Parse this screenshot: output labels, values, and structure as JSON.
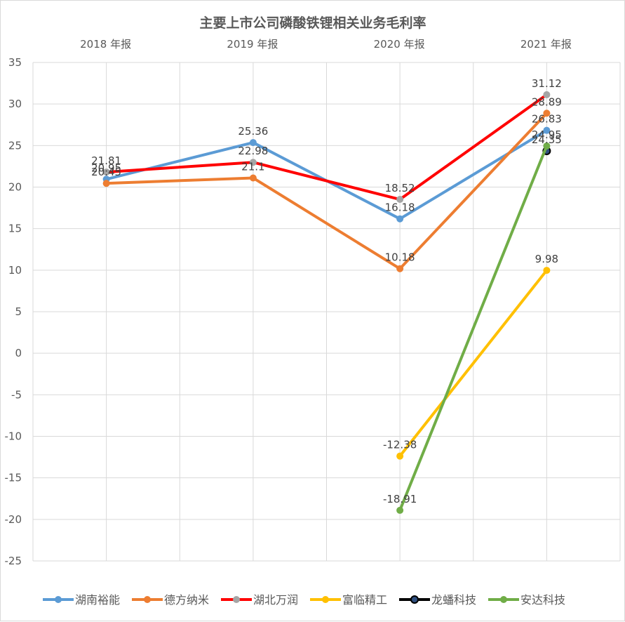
{
  "chart_data": {
    "type": "line",
    "title": "主要上市公司磷酸铁锂相关业务毛利率",
    "categories": [
      "2018 年报",
      "2019 年报",
      "2020 年报",
      "2021 年报"
    ],
    "ylim": [
      -25,
      35
    ],
    "yticks": [
      35,
      30,
      25,
      20,
      15,
      10,
      5,
      0,
      -5,
      -10,
      -15,
      -20,
      -25
    ],
    "grid": true,
    "legend_position": "bottom",
    "series": [
      {
        "name": "湖南裕能",
        "color": "#5b9bd5",
        "values": [
          20.95,
          25.36,
          16.18,
          26.83
        ],
        "labels": [
          "20.95",
          "25.36",
          "16.18",
          "26.83"
        ]
      },
      {
        "name": "德方纳米",
        "color": "#ed7d31",
        "values": [
          20.45,
          21.1,
          10.18,
          28.89
        ],
        "labels": [
          "20.45",
          "21.1",
          "10.18",
          "28.89"
        ]
      },
      {
        "name": "湖北万润",
        "color": "#a5a5a5",
        "values": [
          21.81,
          22.98,
          18.52,
          31.12
        ],
        "labels": [
          "21.81",
          "22.98",
          "18.52",
          "31.12"
        ]
      },
      {
        "name": "富临精工",
        "color": "#ffc000",
        "values": [
          null,
          null,
          -12.38,
          9.98
        ],
        "labels": [
          "",
          "",
          "-12.38",
          "9.98"
        ]
      },
      {
        "name": "龙蟠科技",
        "color": "#000000",
        "values": [
          null,
          null,
          null,
          24.35
        ],
        "labels": [
          "",
          "",
          "",
          "24.35"
        ]
      },
      {
        "name": "安达科技",
        "color": "#70ad47",
        "values": [
          null,
          null,
          -18.91,
          24.95
        ],
        "labels": [
          "",
          "",
          "-18.91",
          "24.95"
        ]
      }
    ],
    "line_colors_override": {
      "湖北万润": "#ff0000"
    }
  }
}
